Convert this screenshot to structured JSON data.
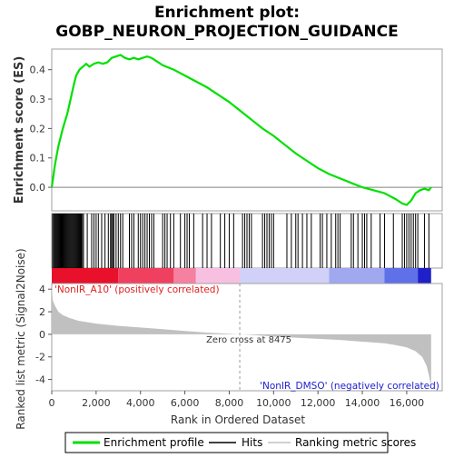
{
  "title_line1": "Enrichment plot:",
  "title_line2": "GOBP_NEURON_PROJECTION_GUIDANCE",
  "colors": {
    "es_line": "#00e000",
    "hits": "#000000",
    "metric_fill": "#c0c0c0",
    "pos_label": "#e02020",
    "neg_label": "#2020d0",
    "frame": "#a0a0a0"
  },
  "chart_data": [
    {
      "type": "line",
      "name": "enrichment-profile",
      "ylabel": "Enrichment score (ES)",
      "xlim": [
        0,
        17600
      ],
      "ylim": [
        -0.08,
        0.47
      ],
      "yticks": [
        0.0,
        0.1,
        0.2,
        0.3,
        0.4
      ],
      "ytick_labels": [
        "0.0",
        "0.1",
        "0.2",
        "0.3",
        "0.4"
      ],
      "x": [
        0,
        150,
        300,
        500,
        700,
        850,
        1000,
        1100,
        1250,
        1400,
        1550,
        1700,
        1900,
        2100,
        2300,
        2500,
        2700,
        2900,
        3100,
        3300,
        3500,
        3700,
        3900,
        4100,
        4300,
        4500,
        4700,
        5000,
        5500,
        6000,
        6500,
        7000,
        7500,
        8000,
        8500,
        9000,
        9500,
        10000,
        10500,
        11000,
        11500,
        12000,
        12500,
        13000,
        13500,
        14000,
        14500,
        15000,
        15500,
        15800,
        16000,
        16200,
        16400,
        16600,
        16800,
        17000,
        17100
      ],
      "y": [
        0.0,
        0.08,
        0.14,
        0.2,
        0.25,
        0.3,
        0.35,
        0.38,
        0.4,
        0.41,
        0.42,
        0.41,
        0.42,
        0.425,
        0.42,
        0.425,
        0.44,
        0.445,
        0.45,
        0.44,
        0.435,
        0.44,
        0.435,
        0.44,
        0.445,
        0.44,
        0.43,
        0.415,
        0.4,
        0.38,
        0.36,
        0.34,
        0.315,
        0.29,
        0.26,
        0.23,
        0.2,
        0.175,
        0.145,
        0.115,
        0.09,
        0.065,
        0.045,
        0.03,
        0.015,
        0.0,
        -0.01,
        -0.02,
        -0.04,
        -0.055,
        -0.06,
        -0.045,
        -0.02,
        -0.01,
        -0.005,
        -0.01,
        0.0
      ]
    },
    {
      "type": "scatter",
      "name": "hits",
      "label": "Hits",
      "x": [
        40,
        90,
        130,
        170,
        210,
        250,
        290,
        330,
        370,
        410,
        450,
        490,
        530,
        570,
        610,
        650,
        690,
        730,
        770,
        810,
        850,
        890,
        930,
        970,
        1010,
        1050,
        1090,
        1130,
        1170,
        1210,
        1250,
        1290,
        1330,
        1380,
        1430,
        1600,
        1800,
        1900,
        2000,
        2100,
        2250,
        2400,
        2550,
        2650,
        2700,
        2750,
        2800,
        2900,
        3000,
        3100,
        3200,
        3500,
        3600,
        3700,
        3900,
        4000,
        4100,
        4200,
        4300,
        4400,
        4500,
        4600,
        5000,
        5100,
        5200,
        5350,
        5500,
        5800,
        6000,
        6100,
        6200,
        6400,
        6800,
        7000,
        7200,
        7600,
        7800,
        8000,
        8200,
        8600,
        8700,
        8800,
        8900,
        9000,
        9500,
        9600,
        9700,
        9800,
        9900,
        10000,
        10600,
        10800,
        11000,
        11100,
        11300,
        11500,
        11700,
        12100,
        12200,
        12400,
        12600,
        12800,
        12900,
        13000,
        13500,
        13600,
        13800,
        14000,
        14100,
        14200,
        14400,
        14800,
        15000,
        15400,
        15800,
        15900,
        16000,
        16100,
        16200,
        16300,
        16400,
        16500,
        16800,
        17000
      ]
    },
    {
      "type": "heatmap",
      "name": "rank-color-bar",
      "xlim": [
        0,
        17600
      ],
      "segments": [
        {
          "x0": 0,
          "x1": 3000,
          "color": "#e8102a"
        },
        {
          "x0": 3000,
          "x1": 5500,
          "color": "#f04060"
        },
        {
          "x0": 5500,
          "x1": 6500,
          "color": "#f580a0"
        },
        {
          "x0": 6500,
          "x1": 8475,
          "color": "#f8c0e0"
        },
        {
          "x0": 8475,
          "x1": 12500,
          "color": "#d0d0f8"
        },
        {
          "x0": 12500,
          "x1": 15000,
          "color": "#a0a8f0"
        },
        {
          "x0": 15000,
          "x1": 16500,
          "color": "#6070e8"
        },
        {
          "x0": 16500,
          "x1": 17100,
          "color": "#2020c8"
        }
      ]
    },
    {
      "type": "area",
      "name": "ranked-list-metric",
      "ylabel": "Ranked list metric (Signal2Noise)",
      "xlabel": "Rank in Ordered Dataset",
      "xlim": [
        0,
        17600
      ],
      "ylim": [
        -5,
        4.5
      ],
      "xticks": [
        0,
        2000,
        4000,
        6000,
        8000,
        10000,
        12000,
        14000,
        16000
      ],
      "xtick_labels": [
        "0",
        "2,000",
        "4,000",
        "6,000",
        "8,000",
        "10,000",
        "12,000",
        "14,000",
        "16,000"
      ],
      "yticks": [
        -4,
        -2,
        0,
        2,
        4
      ],
      "ytick_labels": [
        "-4",
        "-2",
        "0",
        "2",
        "4"
      ],
      "x": [
        0,
        50,
        150,
        300,
        500,
        800,
        1200,
        2000,
        3000,
        4000,
        5000,
        6000,
        7000,
        8000,
        8475,
        9000,
        10000,
        11000,
        12000,
        13000,
        14000,
        15000,
        15500,
        16000,
        16400,
        16700,
        16900,
        17000,
        17100
      ],
      "y": [
        4.2,
        3.0,
        2.5,
        2.0,
        1.7,
        1.45,
        1.2,
        0.95,
        0.75,
        0.6,
        0.45,
        0.3,
        0.15,
        0.05,
        0.0,
        -0.05,
        -0.2,
        -0.3,
        -0.4,
        -0.5,
        -0.65,
        -0.8,
        -0.95,
        -1.15,
        -1.5,
        -2.0,
        -2.8,
        -3.6,
        -4.6
      ],
      "zero_cross_label": "Zero cross at 8475",
      "zero_cross_x": 8475,
      "pos_label": "'NonIR_A10' (positively correlated)",
      "neg_label": "'NonIR_DMSO' (negatively correlated)"
    }
  ],
  "legend": {
    "items": [
      {
        "label": "Enrichment profile"
      },
      {
        "label": "Hits"
      },
      {
        "label": "Ranking metric scores"
      }
    ]
  }
}
